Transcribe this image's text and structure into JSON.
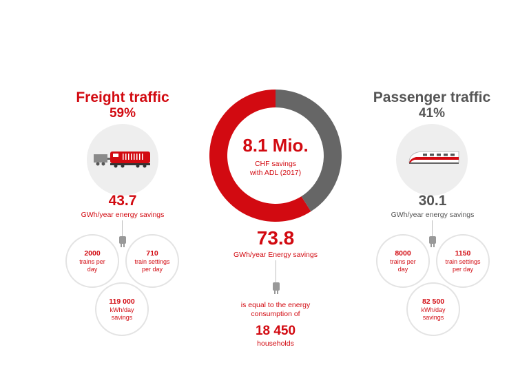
{
  "chart_data": {
    "type": "pie",
    "title": "8.1 Mio.",
    "subtitle": "CHF savings with ADL (2017)",
    "categories": [
      "Freight traffic",
      "Passenger traffic"
    ],
    "values": [
      59,
      41
    ],
    "colors": [
      "#d20a11",
      "#666666"
    ]
  },
  "freight": {
    "title": "Freight traffic",
    "percent": "59%",
    "energy_value": "43.7",
    "energy_label": "GWh/year energy savings",
    "trains_num": "2000",
    "trains_label": "trains per day",
    "settings_num": "710",
    "settings_label": "train settings per day",
    "kwh_num": "119 000",
    "kwh_label": "kWh/day savings"
  },
  "passenger": {
    "title": "Passenger traffic",
    "percent": "41%",
    "energy_value": "30.1",
    "energy_label": "GWh/year energy savings",
    "trains_num": "8000",
    "trains_label": "trains per day",
    "settings_num": "1150",
    "settings_label": "train settings per day",
    "kwh_num": "82 500",
    "kwh_label": "kWh/day savings"
  },
  "center": {
    "main_value": "8.1 Mio.",
    "main_line1": "CHF savings",
    "main_line2": "with ADL (2017)",
    "total_value": "73.8",
    "total_label": "GWh/year Energy savings",
    "equal_line1": "is equal to the energy",
    "equal_line2": "consumption of",
    "households_value": "18 450",
    "households_label": "households"
  },
  "icons": {
    "freight": "freight-train-icon",
    "passenger": "passenger-train-icon",
    "plug": "plug-icon"
  }
}
